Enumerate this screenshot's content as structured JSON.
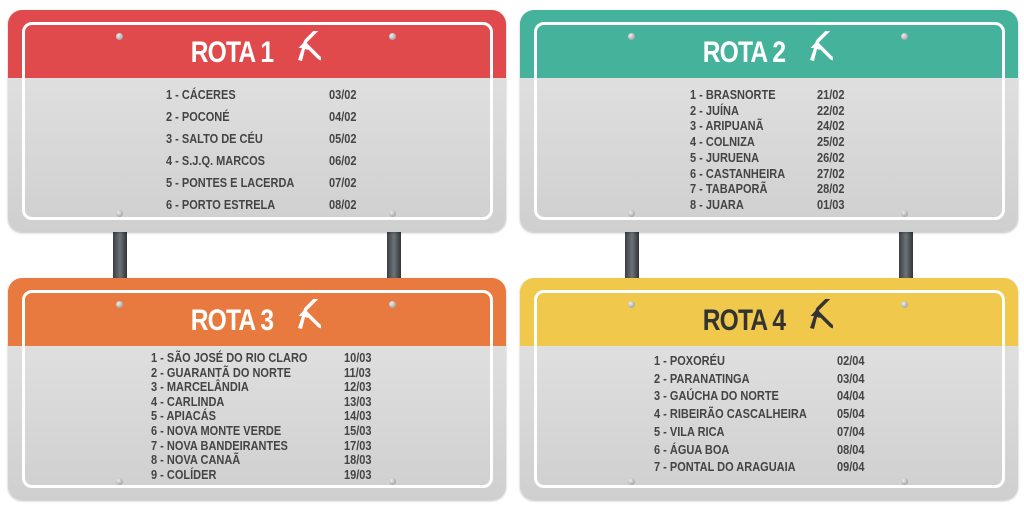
{
  "colors": {
    "rota1": "#e04a4c",
    "rota2": "#45b29c",
    "rota3": "#e87a3f",
    "rota4": "#f0c84b"
  },
  "icon": "route-arrow-diamond-icon",
  "routes": [
    {
      "title": "ROTA 1",
      "stops": [
        {
          "name": "1 - CÁCERES",
          "date": "03/02"
        },
        {
          "name": "2 - POCONÉ",
          "date": "04/02"
        },
        {
          "name": "3 - SALTO DE CÉU",
          "date": "05/02"
        },
        {
          "name": "4 - S.J.Q. MARCOS",
          "date": "06/02"
        },
        {
          "name": "5 - PONTES E LACERDA",
          "date": "07/02"
        },
        {
          "name": "6 - PORTO ESTRELA",
          "date": "08/02"
        }
      ]
    },
    {
      "title": "ROTA 2",
      "stops": [
        {
          "name": "1 - BRASNORTE",
          "date": "21/02"
        },
        {
          "name": "2 - JUÍNA",
          "date": "22/02"
        },
        {
          "name": "3 - ARIPUANÃ",
          "date": "24/02"
        },
        {
          "name": "4 - COLNIZA",
          "date": "25/02"
        },
        {
          "name": "5 - JURUENA",
          "date": "26/02"
        },
        {
          "name": "6 - CASTANHEIRA",
          "date": "27/02"
        },
        {
          "name": "7 - TABAPORÃ",
          "date": "28/02"
        },
        {
          "name": "8 - JUARA",
          "date": "01/03"
        }
      ]
    },
    {
      "title": "ROTA 3",
      "stops": [
        {
          "name": "1 - SÃO JOSÉ DO RIO CLARO",
          "date": "10/03"
        },
        {
          "name": "2 - GUARANTÃ DO NORTE",
          "date": "11/03"
        },
        {
          "name": "3 - MARCELÂNDIA",
          "date": "12/03"
        },
        {
          "name": "4 - CARLINDA",
          "date": "13/03"
        },
        {
          "name": "5 - APIACÁS",
          "date": "14/03"
        },
        {
          "name": "6 - NOVA MONTE VERDE",
          "date": "15/03"
        },
        {
          "name": "7 - NOVA BANDEIRANTES",
          "date": "17/03"
        },
        {
          "name": "8 - NOVA CANAÃ",
          "date": "18/03"
        },
        {
          "name": "9 - COLÍDER",
          "date": "19/03"
        }
      ]
    },
    {
      "title": "ROTA 4",
      "stops": [
        {
          "name": "1 - POXORÉU",
          "date": "02/04"
        },
        {
          "name": "2 - PARANATINGA",
          "date": "03/04"
        },
        {
          "name": "3 - GAÚCHA DO NORTE",
          "date": "04/04"
        },
        {
          "name": "4 - RIBEIRÃO CASCALHEIRA",
          "date": "05/04"
        },
        {
          "name": "5 - VILA RICA",
          "date": "07/04"
        },
        {
          "name": "6 - ÁGUA BOA",
          "date": "08/04"
        },
        {
          "name": "7 - PONTAL DO ARAGUAIA",
          "date": "09/04"
        }
      ]
    }
  ]
}
